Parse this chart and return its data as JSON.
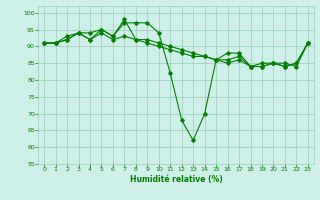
{
  "series": [
    {
      "x": [
        0,
        1,
        2,
        3,
        4,
        5,
        6,
        7,
        8,
        9,
        10,
        11,
        12,
        13,
        14,
        15,
        16,
        17,
        18,
        19,
        20,
        21,
        22,
        23
      ],
      "y": [
        91,
        91,
        92,
        94,
        92,
        95,
        93,
        97,
        97,
        97,
        94,
        82,
        68,
        62,
        70,
        86,
        88,
        88,
        84,
        85,
        85,
        84,
        85,
        91
      ]
    },
    {
      "x": [
        0,
        1,
        2,
        3,
        4,
        5,
        6,
        7,
        8,
        9,
        10,
        11,
        12,
        13,
        14,
        15,
        16,
        17,
        18,
        19,
        20,
        21,
        22,
        23
      ],
      "y": [
        91,
        91,
        93,
        94,
        94,
        95,
        93,
        98,
        92,
        92,
        91,
        90,
        89,
        88,
        87,
        86,
        86,
        87,
        84,
        84,
        85,
        85,
        84,
        91
      ]
    },
    {
      "x": [
        0,
        1,
        2,
        3,
        4,
        5,
        6,
        7,
        8,
        9,
        10,
        11,
        12,
        13,
        14,
        15,
        16,
        17,
        18,
        19,
        20,
        21,
        22,
        23
      ],
      "y": [
        91,
        91,
        92,
        94,
        92,
        94,
        92,
        93,
        92,
        91,
        90,
        89,
        88,
        87,
        87,
        86,
        85,
        86,
        84,
        84,
        85,
        84,
        85,
        91
      ]
    }
  ],
  "line_color": "#008000",
  "marker": "D",
  "markersize": 1.8,
  "linewidth": 0.8,
  "xlim": [
    -0.5,
    23.5
  ],
  "ylim": [
    55,
    102
  ],
  "yticks": [
    55,
    60,
    65,
    70,
    75,
    80,
    85,
    90,
    95,
    100
  ],
  "xticks": [
    0,
    1,
    2,
    3,
    4,
    5,
    6,
    7,
    8,
    9,
    10,
    11,
    12,
    13,
    14,
    15,
    16,
    17,
    18,
    19,
    20,
    21,
    22,
    23
  ],
  "xlabel": "Humidité relative (%)",
  "bg_color": "#cff0e8",
  "grid_color": "#99ccbb",
  "tick_fontsize": 4.5,
  "xlabel_fontsize": 5.5
}
